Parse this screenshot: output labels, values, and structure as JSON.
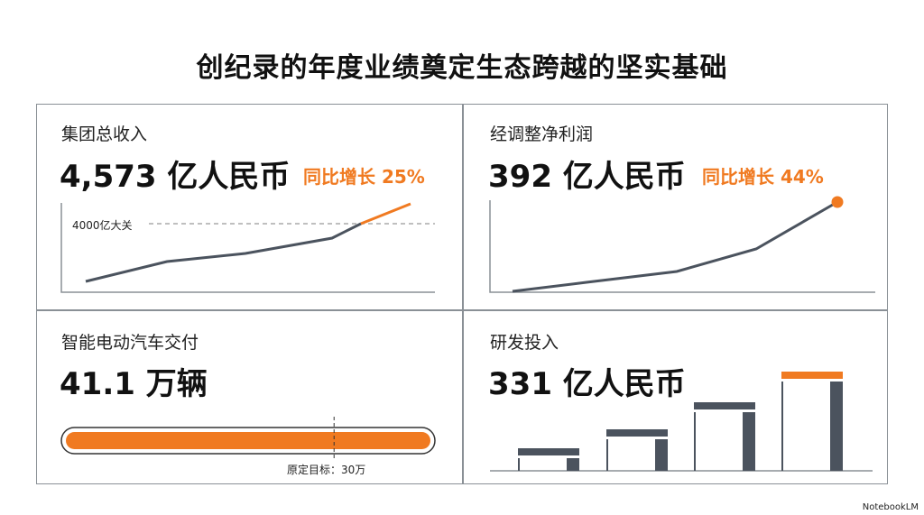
{
  "title": "创纪录的年度业绩奠定生态跨越的坚实基础",
  "colors": {
    "accent": "#f07a21",
    "line": "#4b535e",
    "axis": "#8a9096"
  },
  "panels": {
    "revenue": {
      "label": "集团总收入",
      "value": "4,573 亿人民币",
      "growth": "同比增长 25%",
      "threshold_label": "4000亿大关"
    },
    "profit": {
      "label": "经调整净利润",
      "value": "392 亿人民币",
      "growth": "同比增长 44%"
    },
    "ev": {
      "label": "智能电动汽车交付",
      "value": "41.1 万辆",
      "target_label": "原定目标：30万"
    },
    "rd": {
      "label": "研发投入",
      "value": "331 亿人民币"
    }
  },
  "brand": "NotebookLM",
  "chart_data": [
    {
      "type": "line",
      "title": "集团总收入",
      "values": [
        0,
        22,
        31,
        48,
        64,
        86
      ],
      "threshold": 64,
      "threshold_label": "4000亿大关",
      "highlight_last_segment": true,
      "grid": false
    },
    {
      "type": "line",
      "title": "经调整净利润",
      "values": [
        0,
        10,
        22,
        47,
        99
      ],
      "highlight_last_point": true,
      "grid": false
    },
    {
      "type": "bar",
      "title": "智能电动汽车交付",
      "progress": 1.0,
      "target_fraction": 0.73,
      "target_label": "原定目标：30万"
    },
    {
      "type": "bar",
      "title": "研发投入",
      "values": [
        25,
        46,
        76,
        110
      ],
      "highlight_last": true,
      "grid": false
    }
  ]
}
